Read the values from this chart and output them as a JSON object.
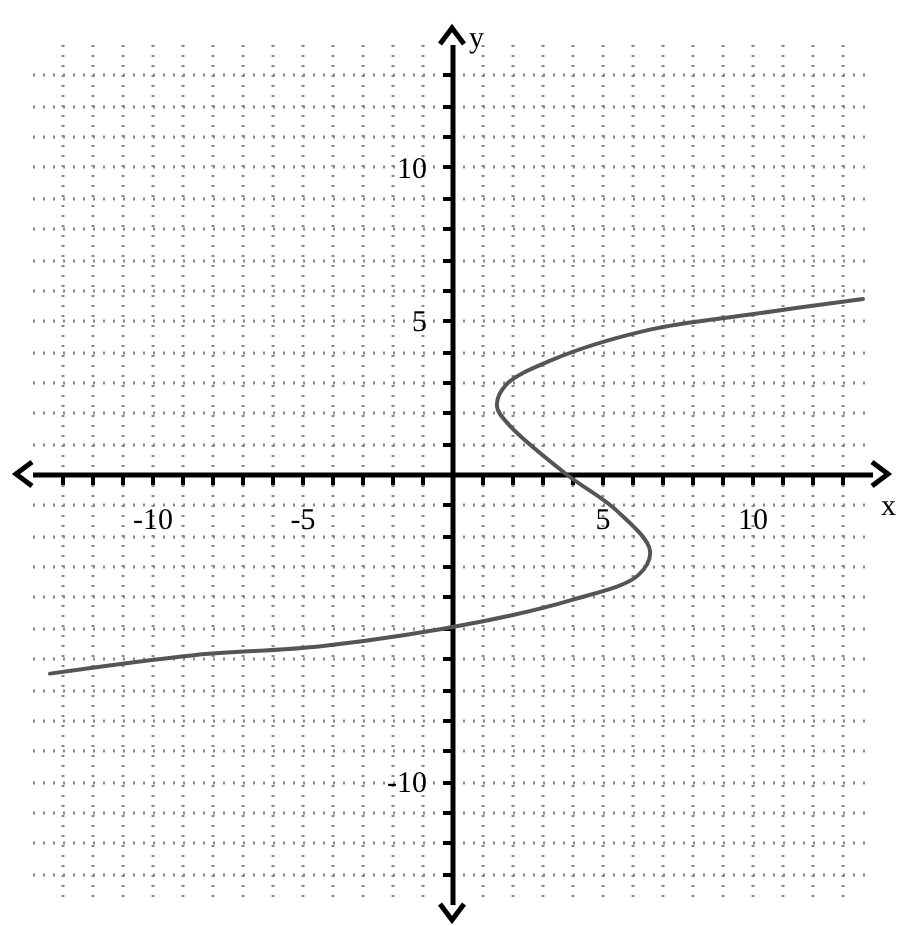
{
  "chart_data": {
    "type": "line",
    "xlabel": "x",
    "ylabel": "y",
    "xlim": [
      -14,
      14
    ],
    "ylim": [
      -14,
      14
    ],
    "xticks": [
      {
        "value": -13,
        "label": null
      },
      {
        "value": -12,
        "label": null
      },
      {
        "value": -11,
        "label": null
      },
      -10,
      {
        "value": -9,
        "label": null
      },
      {
        "value": -8,
        "label": null
      },
      {
        "value": -7,
        "label": null
      },
      {
        "value": -6,
        "label": null
      },
      -5,
      {
        "value": -4,
        "label": null
      },
      {
        "value": -3,
        "label": null
      },
      {
        "value": -2,
        "label": null
      },
      {
        "value": -1,
        "label": null
      },
      {
        "value": 1,
        "label": null
      },
      {
        "value": 2,
        "label": null
      },
      {
        "value": 3,
        "label": null
      },
      {
        "value": 4,
        "label": null
      },
      5,
      {
        "value": 6,
        "label": null
      },
      {
        "value": 7,
        "label": null
      },
      {
        "value": 8,
        "label": null
      },
      {
        "value": 9,
        "label": null
      },
      10,
      {
        "value": 11,
        "label": null
      },
      {
        "value": 12,
        "label": null
      },
      {
        "value": 13,
        "label": null
      }
    ],
    "yticks": [
      {
        "value": -13,
        "label": null
      },
      {
        "value": -12,
        "label": null
      },
      {
        "value": -11,
        "label": null
      },
      -10,
      {
        "value": -9,
        "label": null
      },
      {
        "value": -8,
        "label": null
      },
      {
        "value": -7,
        "label": null
      },
      {
        "value": -6,
        "label": null
      },
      {
        "value": -5,
        "label": null
      },
      {
        "value": -4,
        "label": null
      },
      {
        "value": -3,
        "label": null
      },
      {
        "value": -2,
        "label": null
      },
      {
        "value": -1,
        "label": null
      },
      {
        "value": 1,
        "label": null
      },
      {
        "value": 2,
        "label": null
      },
      {
        "value": 3,
        "label": null
      },
      {
        "value": 4,
        "label": null
      },
      5,
      {
        "value": 6,
        "label": null
      },
      {
        "value": 7,
        "label": null
      },
      {
        "value": 8,
        "label": null
      },
      {
        "value": 9,
        "label": null
      },
      10,
      {
        "value": 11,
        "label": null
      },
      {
        "value": 12,
        "label": null
      },
      {
        "value": 13,
        "label": null
      }
    ],
    "grid": true,
    "series": [
      {
        "color": "#555555",
        "x": [
          13.7,
          10,
          6.6,
          3.3,
          1.8,
          1.5,
          1.9,
          3.8,
          5.5,
          6.6,
          6.2,
          4.0,
          1.0,
          -4.3,
          -8.6,
          -13.4
        ],
        "values": [
          5.7,
          5.2,
          4.7,
          3.7,
          2.9,
          2.2,
          1.6,
          0,
          -1.2,
          -2.5,
          -3.3,
          -4.1,
          -4.8,
          -5.6,
          -5.9,
          -6.5
        ]
      }
    ]
  }
}
